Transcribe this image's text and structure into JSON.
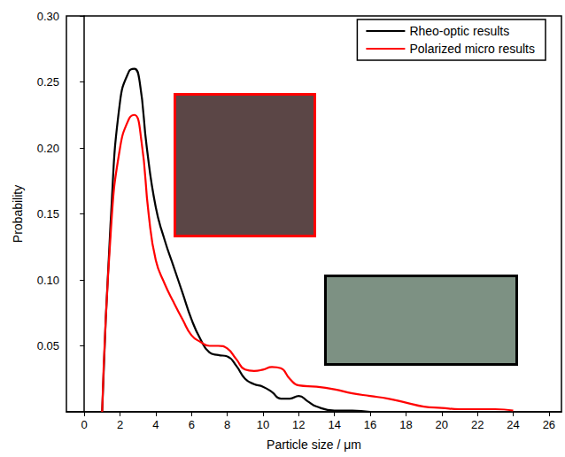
{
  "chart_data": {
    "type": "line",
    "x_label": "Particle size / μm",
    "y_label": "Probability",
    "xlim": [
      -1,
      26.7
    ],
    "xticks": [
      0,
      2,
      4,
      6,
      8,
      10,
      12,
      14,
      16,
      18,
      20,
      22,
      24,
      26
    ],
    "ylim": [
      0,
      0.3
    ],
    "yticks": [
      0.05,
      {
        "value": 0.1,
        "label": "0.10"
      },
      0.15,
      {
        "value": 0.2,
        "label": "0.20"
      },
      0.25,
      {
        "value": 0.3,
        "label": "0.30"
      }
    ],
    "grid": false,
    "legend": "upper right",
    "series": [
      {
        "name": "Rheo-optic results",
        "color": "#000000",
        "x": [
          1,
          1.5,
          2,
          2.5,
          2.8,
          3.1,
          3.5,
          4,
          4.5,
          5,
          5.5,
          6,
          6.5,
          7,
          7.5,
          8,
          8.5,
          9,
          9.5,
          10,
          10.5,
          11,
          11.5,
          12,
          12.5,
          13,
          14,
          15,
          16
        ],
        "values": [
          0,
          0.15,
          0.235,
          0.258,
          0.26,
          0.25,
          0.2,
          0.155,
          0.13,
          0.11,
          0.09,
          0.07,
          0.055,
          0.045,
          0.043,
          0.042,
          0.035,
          0.025,
          0.021,
          0.019,
          0.015,
          0.01,
          0.01,
          0.012,
          0.008,
          0.004,
          0.001,
          0.001,
          0
        ]
      },
      {
        "name": "Polarized micro results",
        "color": "#ff0000",
        "x": [
          1,
          1.5,
          2,
          2.5,
          2.8,
          3.2,
          3.6,
          4,
          4.5,
          5,
          5.5,
          6,
          6.5,
          7,
          7.5,
          8,
          8.5,
          9,
          9.5,
          10,
          10.5,
          11,
          11.5,
          12,
          13,
          14,
          15,
          16,
          17,
          18,
          19,
          20,
          21,
          22,
          23,
          24
        ],
        "values": [
          0,
          0.14,
          0.2,
          0.222,
          0.225,
          0.205,
          0.15,
          0.115,
          0.097,
          0.083,
          0.07,
          0.058,
          0.053,
          0.05,
          0.05,
          0.048,
          0.04,
          0.032,
          0.031,
          0.032,
          0.034,
          0.033,
          0.025,
          0.02,
          0.019,
          0.017,
          0.014,
          0.012,
          0.01,
          0.007,
          0.004,
          0.003,
          0.002,
          0.002,
          0.002,
          0.001
        ]
      }
    ]
  }
}
